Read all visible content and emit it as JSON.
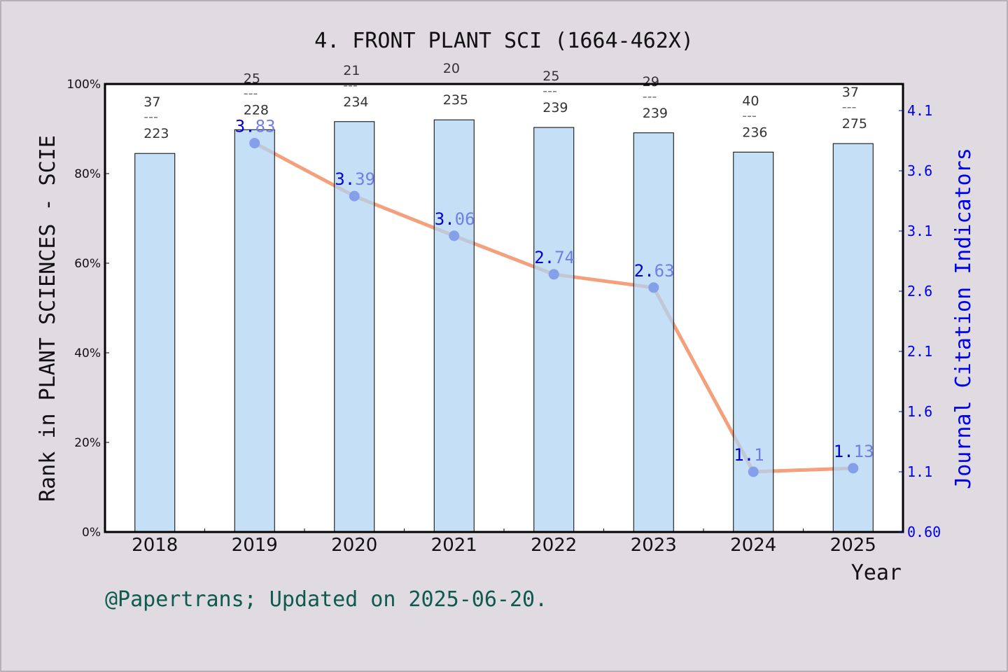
{
  "chart_data": {
    "type": "bar+line",
    "title": "4. FRONT PLANT SCI (1664-462X)",
    "xlabel": "Year",
    "ylabel_left": "Rank in PLANT SCIENCES - SCIE",
    "ylabel_right": "Journal Citation Indicators",
    "categories": [
      "2018",
      "2019",
      "2020",
      "2021",
      "2022",
      "2023",
      "2024",
      "2025"
    ],
    "bars": {
      "values": [
        84.5,
        89.8,
        91.6,
        92.0,
        90.3,
        89.1,
        84.8,
        86.7
      ],
      "rank_labels": [
        {
          "rank": "37",
          "total": "223"
        },
        {
          "rank": "25",
          "total": "228"
        },
        {
          "rank": "21",
          "total": "234"
        },
        {
          "rank": "20",
          "total": "235"
        },
        {
          "rank": "25",
          "total": "239"
        },
        {
          "rank": "29",
          "total": "239"
        },
        {
          "rank": "40",
          "total": "236"
        },
        {
          "rank": "37",
          "total": "275"
        }
      ],
      "color": "#c5e0f7"
    },
    "line": {
      "categories": [
        "2019",
        "2020",
        "2021",
        "2022",
        "2023",
        "2024",
        "2025"
      ],
      "values": [
        3.83,
        3.39,
        3.06,
        2.74,
        2.63,
        1.1,
        1.13
      ],
      "labels": [
        "3.83",
        "3.39",
        "3.06",
        "2.74",
        "2.63",
        "1.1",
        "1.13"
      ],
      "color": "#f4a07c",
      "marker_color": "#0000cc"
    },
    "ylim_left": [
      0,
      100
    ],
    "yticks_left": [
      "0%",
      "20%",
      "40%",
      "60%",
      "80%",
      "100%"
    ],
    "ylim_right": [
      0.6,
      4.1
    ],
    "yticks_right": [
      "0.60",
      "1.1",
      "1.6",
      "2.1",
      "2.6",
      "3.1",
      "3.6",
      "4.1"
    ],
    "yticks_right_values": [
      0.6,
      1.1,
      1.6,
      2.1,
      2.6,
      3.1,
      3.6,
      4.1
    ],
    "grid": false
  },
  "footer": "@Papertrans; Updated on 2025-06-20."
}
